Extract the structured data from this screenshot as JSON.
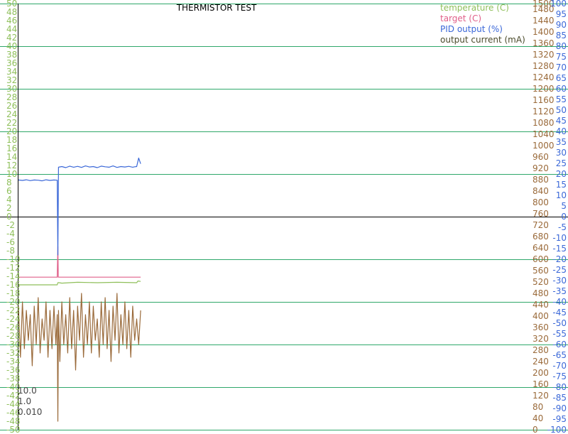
{
  "chart_data": {
    "type": "line",
    "title": "THERMISTOR TEST",
    "colors": {
      "temperature": "#8fbf5a",
      "target": "#e0608a",
      "pid": "#3b68d8",
      "current": "#9a6a3a",
      "grid": "#2fa86a",
      "zero": "#000000",
      "left_axis_text": "#8fbf5a",
      "current_axis_text": "#9a6a3a",
      "pid_axis_text": "#3b68d8"
    },
    "legend": [
      {
        "key": "temperature",
        "label": "temperature (C)"
      },
      {
        "key": "target",
        "label": "target (C)"
      },
      {
        "key": "pid",
        "label": "PID output (%)"
      },
      {
        "key": "current",
        "label": "output current (mA)"
      }
    ],
    "legend_position": "top-right",
    "axes": {
      "left": {
        "ylim": [
          -50,
          50
        ],
        "ticks": [
          "50",
          "48",
          "46",
          "44",
          "42",
          "40",
          "38",
          "36",
          "34",
          "32",
          "30",
          "28",
          "26",
          "24",
          "22",
          "20",
          "18",
          "16",
          "14",
          "12",
          "10",
          "8",
          "6",
          "4",
          "2",
          "0",
          "-2",
          "-4",
          "-6",
          "-8",
          "-10",
          "-12",
          "-14",
          "-16",
          "-18",
          "-20",
          "-22",
          "-24",
          "-26",
          "-28",
          "-30",
          "-32",
          "-34",
          "-36",
          "-38",
          "-40",
          "-42",
          "-44",
          "-46",
          "-48",
          "-50"
        ]
      },
      "current": {
        "ylim": [
          0,
          1500
        ],
        "ticks": [
          "1500",
          "1480",
          "1440",
          "1400",
          "1360",
          "1320",
          "1280",
          "1240",
          "1200",
          "1160",
          "1120",
          "1080",
          "1040",
          "1000",
          "960",
          "920",
          "880",
          "840",
          "800",
          "760",
          "720",
          "680",
          "640",
          "600",
          "560",
          "520",
          "480",
          "440",
          "400",
          "360",
          "320",
          "280",
          "240",
          "200",
          "160",
          "120",
          "80",
          "40",
          "0"
        ]
      },
      "pid": {
        "ylim": [
          -100,
          100
        ],
        "ticks": [
          "100",
          "95",
          "90",
          "85",
          "80",
          "75",
          "70",
          "65",
          "60",
          "55",
          "50",
          "45",
          "40",
          "35",
          "30",
          "25",
          "20",
          "15",
          "10",
          "5",
          "0",
          "-5",
          "-10",
          "-15",
          "-20",
          "-25",
          "-30",
          "-35",
          "-40",
          "-45",
          "-50",
          "-55",
          "-60",
          "-65",
          "-70",
          "-75",
          "-80",
          "-85",
          "-90",
          "-95",
          "-100"
        ]
      }
    },
    "grid": true,
    "gains": [
      "10.0",
      "1.0",
      "0.010"
    ],
    "xlim": [
      0,
      100
    ],
    "step_x": 30,
    "series": [
      {
        "key": "pid",
        "axis": "pid",
        "x": [
          0,
          3,
          6,
          9,
          12,
          15,
          18,
          21,
          24,
          27,
          29.5,
          30,
          30.5,
          33,
          36,
          39,
          42,
          45,
          48,
          51,
          54,
          57,
          60,
          63,
          66,
          69,
          72,
          75,
          78,
          81,
          84,
          87,
          88.5,
          90,
          91.5,
          93
        ],
        "y": [
          17.2,
          17.0,
          17.3,
          16.9,
          17.2,
          17.1,
          16.8,
          17.3,
          17.0,
          17.2,
          17.1,
          -18,
          23.2,
          23.5,
          23.0,
          23.7,
          23.2,
          23.6,
          23.1,
          23.8,
          23.3,
          23.5,
          23.0,
          23.7,
          23.4,
          23.2,
          23.8,
          23.1,
          23.5,
          23.3,
          23.6,
          23.2,
          23.4,
          23.5,
          27.5,
          24.8
        ]
      },
      {
        "key": "target",
        "axis": "left",
        "x": [
          0,
          29.5,
          30,
          30.3,
          31,
          93
        ],
        "y": [
          -14.2,
          -14.2,
          -7,
          -14.2,
          -14.2,
          -14.2
        ]
      },
      {
        "key": "temperature",
        "axis": "left",
        "x": [
          0,
          29.5,
          30,
          31,
          33,
          45,
          60,
          75,
          90,
          91,
          93
        ],
        "y": [
          -16.0,
          -16.0,
          -15.5,
          -15.5,
          -15.6,
          -15.4,
          -15.5,
          -15.4,
          -15.5,
          -15.1,
          -15.2
        ]
      },
      {
        "key": "current",
        "axis": "left",
        "x": [
          0,
          1.5,
          3,
          4.5,
          6,
          7.5,
          9,
          10.5,
          12,
          13.5,
          15,
          16.5,
          18,
          19.5,
          21,
          22.5,
          24,
          25.5,
          27,
          28.5,
          29.5,
          30,
          30.5,
          31.5,
          33,
          34.5,
          36,
          37.5,
          39,
          40.5,
          42,
          43.5,
          45,
          46.5,
          48,
          49.5,
          51,
          52.5,
          54,
          55.5,
          57,
          58.5,
          60,
          61.5,
          63,
          64.5,
          66,
          67.5,
          69,
          70.5,
          72,
          73.5,
          75,
          76.5,
          78,
          79.5,
          81,
          82.5,
          84,
          85.5,
          87,
          88.5,
          90,
          91.5,
          93
        ],
        "y": [
          -21,
          -33,
          -20,
          -31,
          -22,
          -29,
          -23,
          -35,
          -21,
          -30,
          -19,
          -32,
          -24,
          -29,
          -20,
          -33,
          -22,
          -31,
          -21,
          -30,
          -23,
          -48,
          -22,
          -34,
          -20,
          -30,
          -23,
          -32,
          -19,
          -31,
          -22,
          -36,
          -21,
          -29,
          -18,
          -33,
          -23,
          -30,
          -20,
          -32,
          -21,
          -29,
          -24,
          -33,
          -20,
          -30,
          -19,
          -31,
          -22,
          -34,
          -21,
          -29,
          -18,
          -32,
          -23,
          -30,
          -20,
          -31,
          -22,
          -33,
          -21,
          -29,
          -24,
          -30,
          -22
        ]
      }
    ]
  }
}
